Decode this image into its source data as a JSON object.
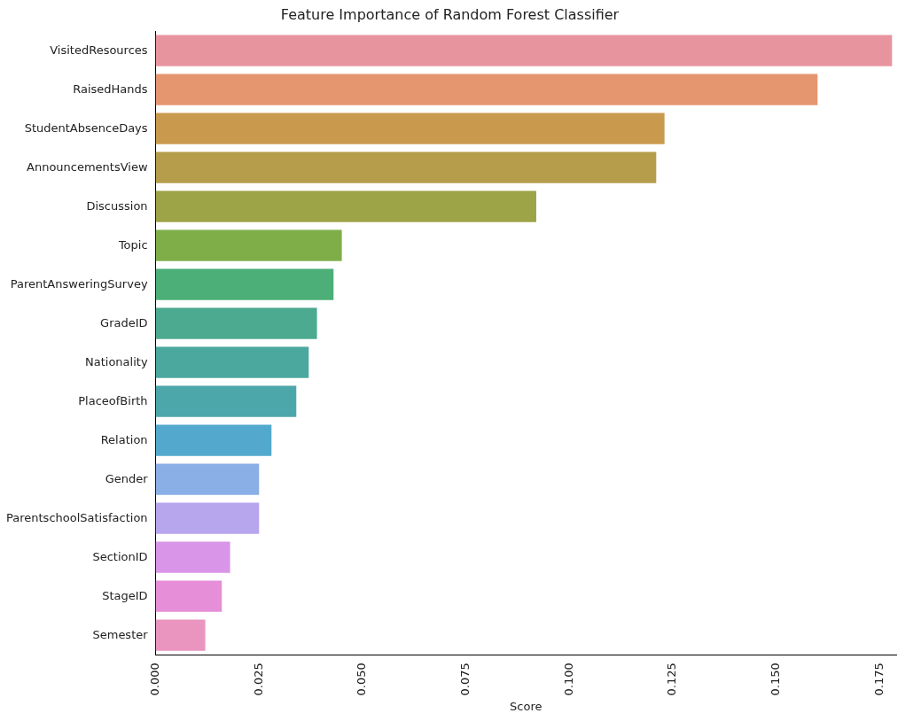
{
  "chart_data": {
    "type": "bar",
    "orientation": "horizontal",
    "title": "Feature Importance of Random Forest Classifier",
    "xlabel": "Score",
    "categories": [
      "VisitedResources",
      "RaisedHands",
      "StudentAbsenceDays",
      "AnnouncementsView",
      "Discussion",
      "Topic",
      "ParentAnsweringSurvey",
      "GradeID",
      "Nationality",
      "PlaceofBirth",
      "Relation",
      "Gender",
      "ParentschoolSatisfaction",
      "SectionID",
      "StageID",
      "Semester"
    ],
    "values": [
      0.178,
      0.16,
      0.123,
      0.121,
      0.092,
      0.045,
      0.043,
      0.039,
      0.037,
      0.034,
      0.028,
      0.025,
      0.025,
      0.018,
      0.016,
      0.012
    ],
    "colors": [
      "#e8949f",
      "#e5966f",
      "#c99a4e",
      "#b59d4b",
      "#9da347",
      "#7fae48",
      "#4caf78",
      "#4baa90",
      "#4aa89f",
      "#4ca7ab",
      "#52a9cd",
      "#8aaee6",
      "#b7a6ee",
      "#d996e8",
      "#e68fd8",
      "#e995c0"
    ],
    "xlim": [
      0,
      0.179
    ],
    "xticks": [
      {
        "value": 0,
        "label": "0.000"
      },
      {
        "value": 0.025,
        "label": "0.025"
      },
      {
        "value": 0.05,
        "label": "0.050"
      },
      {
        "value": 0.075,
        "label": "0.075"
      },
      {
        "value": 0.1,
        "label": "0.100"
      },
      {
        "value": 0.125,
        "label": "0.125"
      },
      {
        "value": 0.15,
        "label": "0.150"
      },
      {
        "value": 0.175,
        "label": "0.175"
      }
    ],
    "grid": false,
    "legend": false
  }
}
